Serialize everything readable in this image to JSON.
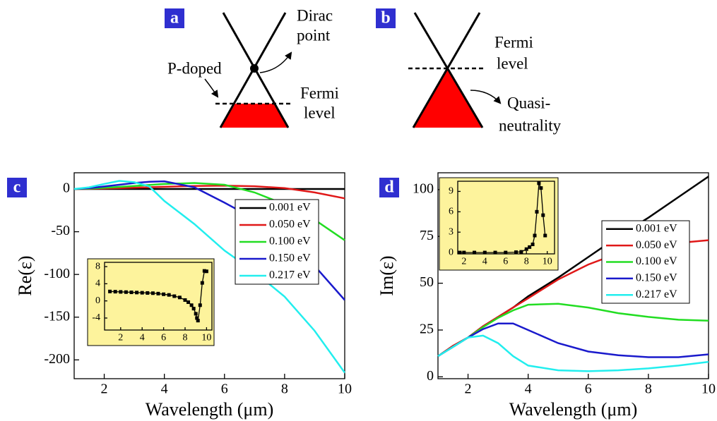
{
  "diagram_a": {
    "label": "a",
    "dirac_point": [
      "Dirac",
      "point"
    ],
    "p_doped": "P-doped",
    "fermi_level": [
      "Fermi",
      "level"
    ]
  },
  "diagram_b": {
    "label": "b",
    "fermi_level": [
      "Fermi",
      "level"
    ],
    "quasi_neutrality": [
      "Quasi-",
      "neutrality"
    ]
  },
  "chart_data": [
    {
      "type": "line",
      "panel_label": "c",
      "ylabel": "Re(ε)",
      "xlabel": "Wavelength (μm)",
      "x": [
        1,
        1.5,
        2,
        2.5,
        3,
        3.5,
        4,
        5,
        6,
        7,
        8,
        9,
        10
      ],
      "series": [
        {
          "name": "0.001 eV",
          "color": "#000000",
          "values": [
            0,
            0,
            0,
            0,
            0,
            0,
            0,
            0,
            0,
            0,
            0,
            0,
            0
          ]
        },
        {
          "name": "0.050 eV",
          "color": "#e01818",
          "values": [
            0,
            0.3,
            0.7,
            1.1,
            1.6,
            2.1,
            2.6,
            3.6,
            4.0,
            3.2,
            1,
            -4,
            -11
          ]
        },
        {
          "name": "0.100 eV",
          "color": "#22dd22",
          "values": [
            0,
            0.5,
            1.5,
            2.5,
            3.6,
            4.8,
            5.9,
            7,
            5,
            -4,
            -18,
            -36,
            -60
          ]
        },
        {
          "name": "0.150 eV",
          "color": "#1a1acc",
          "values": [
            0,
            1,
            3,
            5,
            7,
            8.5,
            9,
            2,
            -16,
            -35,
            -57,
            -90,
            -130
          ]
        },
        {
          "name": "0.217 eV",
          "color": "#22eeee",
          "values": [
            0,
            2,
            6,
            9.5,
            8,
            3,
            -14,
            -41,
            -72,
            -97,
            -126,
            -166,
            -215
          ]
        }
      ],
      "xlim": [
        1,
        10
      ],
      "ylim": [
        -222,
        19
      ],
      "xticks": [
        2,
        4,
        6,
        8,
        10
      ],
      "yticks": [
        0,
        -50,
        -100,
        -150,
        -200
      ],
      "legend": "center right"
    },
    {
      "type": "line",
      "panel_label": "d",
      "ylabel": "Im(ε)",
      "xlabel": "Wavelength (μm)",
      "x": [
        1,
        1.5,
        2,
        2.5,
        3,
        3.5,
        4,
        5,
        6,
        7,
        8,
        9,
        10
      ],
      "series": [
        {
          "name": "0.001 eV",
          "color": "#000000",
          "values": [
            11,
            16.5,
            21,
            27,
            32,
            37,
            43,
            53,
            64,
            75,
            85,
            96,
            107
          ]
        },
        {
          "name": "0.050 eV",
          "color": "#e01818",
          "values": [
            11,
            16.5,
            21,
            27,
            32,
            37,
            42,
            52,
            60,
            66,
            69.5,
            71.5,
            73
          ]
        },
        {
          "name": "0.100 eV",
          "color": "#22dd22",
          "values": [
            11,
            16,
            21,
            26.5,
            31.5,
            35.5,
            38.5,
            39,
            37,
            34,
            32,
            30.5,
            30
          ]
        },
        {
          "name": "0.150 eV",
          "color": "#1a1acc",
          "values": [
            11,
            16,
            21,
            25.5,
            28.5,
            28.5,
            25,
            18,
            13.5,
            11.5,
            10.5,
            10.5,
            12
          ]
        },
        {
          "name": "0.217 eV",
          "color": "#22eeee",
          "values": [
            11,
            16,
            21,
            22,
            18,
            11,
            6,
            3.5,
            3,
            3.5,
            4.5,
            6,
            8
          ]
        }
      ],
      "xlim": [
        1,
        10
      ],
      "ylim": [
        -1,
        109
      ],
      "xticks": [
        2,
        4,
        6,
        8,
        10
      ],
      "yticks": [
        0,
        25,
        50,
        75,
        100
      ],
      "legend": "center right"
    },
    {
      "type": "line",
      "markers": true,
      "x": [
        1,
        1.5,
        2,
        2.5,
        3,
        3.5,
        4,
        4.5,
        5,
        5.5,
        6,
        6.5,
        7,
        7.5,
        8,
        8.3,
        8.6,
        8.8,
        9,
        9.1,
        9.2,
        9.4,
        9.6,
        9.8,
        10
      ],
      "series": [
        {
          "color": "#000000",
          "values": [
            2.2,
            2.15,
            2.1,
            2.05,
            2.0,
            1.95,
            1.9,
            1.85,
            1.8,
            1.7,
            1.55,
            1.4,
            1.1,
            0.8,
            0.2,
            -0.3,
            -1,
            -1.8,
            -3,
            -4,
            -4.6,
            -1,
            4.2,
            7,
            6.9
          ]
        }
      ],
      "xlim": [
        0.5,
        10.5
      ],
      "ylim": [
        -6.8,
        9
      ],
      "xticks": [
        2,
        4,
        6,
        8,
        10
      ],
      "yticks": [
        -4,
        0,
        4,
        8
      ]
    },
    {
      "type": "line",
      "markers": true,
      "x": [
        1.6,
        2,
        3,
        4,
        5,
        6,
        7,
        7.5,
        8,
        8.3,
        8.6,
        8.8,
        9,
        9.2,
        9.4,
        9.6,
        9.8
      ],
      "series": [
        {
          "color": "#000000",
          "values": [
            0,
            0,
            0,
            0,
            0,
            0,
            0.05,
            0.1,
            0.5,
            0.8,
            1.2,
            2.5,
            6,
            10.2,
            9.5,
            5.5,
            2.5
          ]
        }
      ],
      "xlim": [
        1.4,
        10.7
      ],
      "ylim": [
        -0.2,
        10.5
      ],
      "xticks": [
        2,
        4,
        6,
        8,
        10
      ],
      "yticks": [
        0,
        3,
        6,
        9
      ]
    }
  ]
}
